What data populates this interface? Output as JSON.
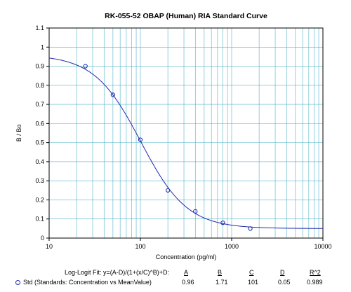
{
  "chart_data": {
    "type": "scatter",
    "title": "RK-055-52 OBAP (Human) RIA  Standard Curve",
    "xlabel": "Concentration (pg/ml)",
    "ylabel": "B / Bo",
    "xscale": "log",
    "xlim": [
      10,
      10000
    ],
    "ylim": [
      0,
      1.1
    ],
    "grid": true,
    "x_tick_labels": [
      "10",
      "100",
      "1000",
      "10000"
    ],
    "y_tick_labels": [
      "0",
      "0.1",
      "0.2",
      "0.3",
      "0.4",
      "0.5",
      "0.6",
      "0.7",
      "0.8",
      "0.9",
      "1",
      "1.1"
    ],
    "series": [
      {
        "name": "Std (Standards: Concentration vs MeanValue)",
        "x": [
          25,
          50,
          100,
          200,
          400,
          800,
          1600
        ],
        "y": [
          0.9,
          0.75,
          0.515,
          0.25,
          0.14,
          0.08,
          0.05
        ]
      }
    ],
    "fit": {
      "type": "log-logit",
      "A": 0.96,
      "B": 1.71,
      "C": 101,
      "D": 0.05
    },
    "colors": {
      "curve": "#1f2bb0",
      "grid": "#4fb4c8",
      "marker": "#1f2bb0"
    }
  },
  "legend": {
    "fit_label": "Log-Logit Fit:  y=(A-D)/(1+(x/C)^B)+D:",
    "headers": [
      "A",
      "B",
      "C",
      "D",
      "R^2"
    ],
    "series_label": "Std (Standards: Concentration vs MeanValue)",
    "values": [
      "0.96",
      "1.71",
      "101",
      "0.05",
      "0.989"
    ]
  }
}
